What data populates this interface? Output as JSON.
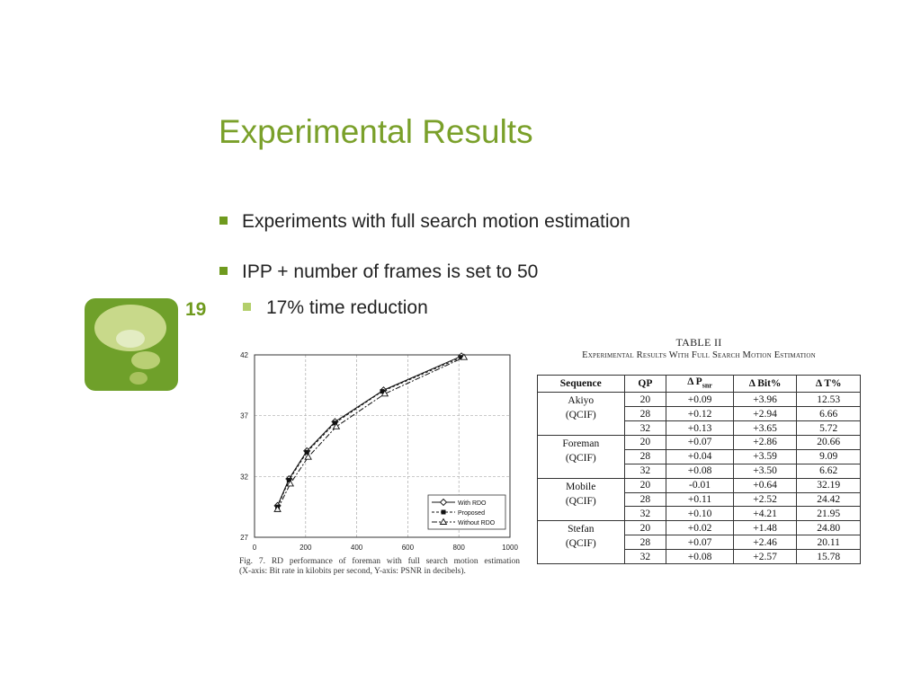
{
  "slide": {
    "title": "Experimental Results",
    "page_number": "19",
    "bullets": [
      "Experiments with full search motion estimation",
      "IPP + number of frames is set to 50",
      "17% time reduction"
    ],
    "colors": {
      "title": "#7aa02a",
      "bullet": "#6f9a1e",
      "sub_bullet": "#b3cf6b",
      "logo": "#6fa02a"
    }
  },
  "figure": {
    "caption_line1": "Fig. 7.  RD performance of foreman with full search motion estimation",
    "caption_line2": "(X-axis: Bit rate in kilobits per second, Y-axis: PSNR in decibels)."
  },
  "chart_data": {
    "type": "line",
    "xlim": [
      0,
      1000
    ],
    "ylim": [
      27,
      42
    ],
    "x_ticks": [
      0,
      200,
      400,
      600,
      800,
      1000
    ],
    "y_ticks": [
      27,
      32,
      37,
      42
    ],
    "grid": true,
    "legend_position": "bottom-right",
    "series": [
      {
        "name": "With RDO",
        "marker": "diamond",
        "dash": "solid",
        "x": [
          90,
          135,
          205,
          315,
          505,
          810
        ],
        "y": [
          29.6,
          31.8,
          34.1,
          36.5,
          39.1,
          41.9
        ]
      },
      {
        "name": "Proposed",
        "marker": "square",
        "dash": "3,2",
        "x": [
          90,
          135,
          205,
          315,
          500,
          810
        ],
        "y": [
          29.5,
          31.7,
          34.0,
          36.4,
          39.0,
          41.8
        ]
      },
      {
        "name": "Without RDO",
        "marker": "triangle",
        "dash": "6,2,2,2",
        "x": [
          90,
          140,
          210,
          320,
          510,
          820
        ],
        "y": [
          29.3,
          31.4,
          33.6,
          36.1,
          38.8,
          41.8
        ]
      }
    ]
  },
  "table": {
    "title": "TABLE II",
    "subtitle": "Experimental Results With Full Search Motion Estimation",
    "headers": [
      "Sequence",
      "QP",
      "Δ P",
      "Δ Bit%",
      "Δ T%"
    ],
    "psnr_subscript": "snr",
    "groups": [
      {
        "name": "Akiyo",
        "format": "(QCIF)",
        "rows": [
          [
            "20",
            "+0.09",
            "+3.96",
            "12.53"
          ],
          [
            "28",
            "+0.12",
            "+2.94",
            "6.66"
          ],
          [
            "32",
            "+0.13",
            "+3.65",
            "5.72"
          ]
        ]
      },
      {
        "name": "Foreman",
        "format": "(QCIF)",
        "rows": [
          [
            "20",
            "+0.07",
            "+2.86",
            "20.66"
          ],
          [
            "28",
            "+0.04",
            "+3.59",
            "9.09"
          ],
          [
            "32",
            "+0.08",
            "+3.50",
            "6.62"
          ]
        ]
      },
      {
        "name": "Mobile",
        "format": "(QCIF)",
        "rows": [
          [
            "20",
            "-0.01",
            "+0.64",
            "32.19"
          ],
          [
            "28",
            "+0.11",
            "+2.52",
            "24.42"
          ],
          [
            "32",
            "+0.10",
            "+4.21",
            "21.95"
          ]
        ]
      },
      {
        "name": "Stefan",
        "format": "(QCIF)",
        "rows": [
          [
            "20",
            "+0.02",
            "+1.48",
            "24.80"
          ],
          [
            "28",
            "+0.07",
            "+2.46",
            "20.11"
          ],
          [
            "32",
            "+0.08",
            "+2.57",
            "15.78"
          ]
        ]
      }
    ]
  }
}
